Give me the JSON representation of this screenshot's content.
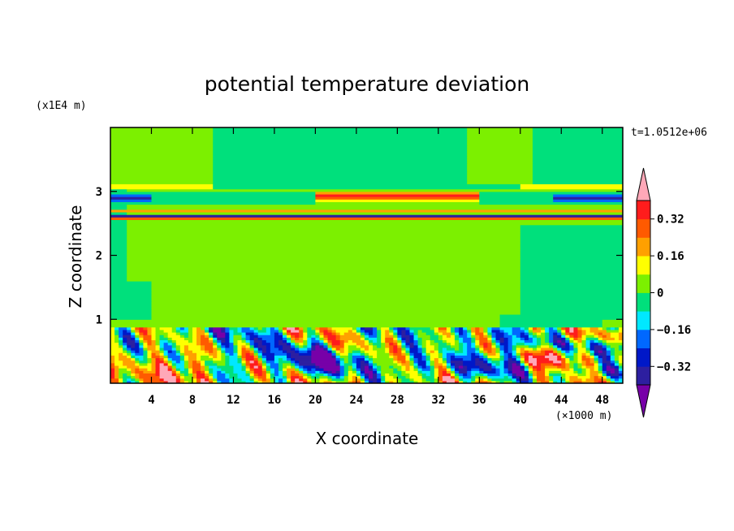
{
  "chart_data": {
    "type": "heatmap",
    "title": "potential temperature deviation",
    "xlabel": "X coordinate",
    "ylabel": "Z coordinate",
    "x_units": "(×1000 m)",
    "y_units": "(x1E4 m)",
    "time_label": "t=1.0512e+06",
    "xlim": [
      0,
      50
    ],
    "ylim": [
      0,
      4
    ],
    "x_ticks": [
      "4",
      "8",
      "12",
      "16",
      "20",
      "24",
      "28",
      "32",
      "36",
      "40",
      "44",
      "48"
    ],
    "x_tick_values": [
      4,
      8,
      12,
      16,
      20,
      24,
      28,
      32,
      36,
      40,
      44,
      48
    ],
    "y_ticks": [
      "1",
      "2",
      "3"
    ],
    "y_tick_values": [
      1,
      2,
      3
    ],
    "colorbar": {
      "labels": [
        "0.32",
        "0.16",
        "0",
        "−0.16",
        "−0.32"
      ],
      "label_values": [
        0.32,
        0.16,
        0,
        -0.16,
        -0.32
      ],
      "levels": [
        -0.4,
        -0.32,
        -0.24,
        -0.16,
        -0.08,
        0,
        0.08,
        0.16,
        0.24,
        0.32,
        0.4
      ],
      "colors": [
        "#7700a8",
        "#2d1fa0",
        "#0018c8",
        "#0068ff",
        "#00e8ff",
        "#00e07c",
        "#7cf000",
        "#ffff00",
        "#ffa000",
        "#ff5a00",
        "#ff1c1c",
        "#ffa8b8"
      ],
      "under_color": "#7700a8",
      "over_color": "#ffa8b8"
    },
    "features": [
      {
        "region": "background",
        "value": 0.04
      },
      {
        "region": "upper-neutral-columns",
        "x": [
          [
            10,
            35
          ],
          [
            41,
            50
          ]
        ],
        "z": [
          3.1,
          4.0
        ],
        "value": -0.04
      },
      {
        "region": "band",
        "z": 2.93,
        "value": 0.3,
        "x": [
          20,
          36
        ]
      },
      {
        "region": "band",
        "z": 2.9,
        "value": -0.33,
        "x": [
          0,
          4
        ]
      },
      {
        "region": "band",
        "z": 2.9,
        "value": -0.33,
        "x": [
          43,
          50
        ]
      },
      {
        "region": "band",
        "z": 2.7,
        "value": 0.25
      },
      {
        "region": "band",
        "z": 2.62,
        "value": -0.33
      },
      {
        "region": "band",
        "z": 2.55,
        "value": 0.3
      },
      {
        "region": "band",
        "z": 2.52,
        "value": -0.2
      },
      {
        "region": "boundary-layer",
        "z": [
          0,
          0.85
        ],
        "value_range": [
          -0.4,
          0.4
        ]
      }
    ]
  }
}
